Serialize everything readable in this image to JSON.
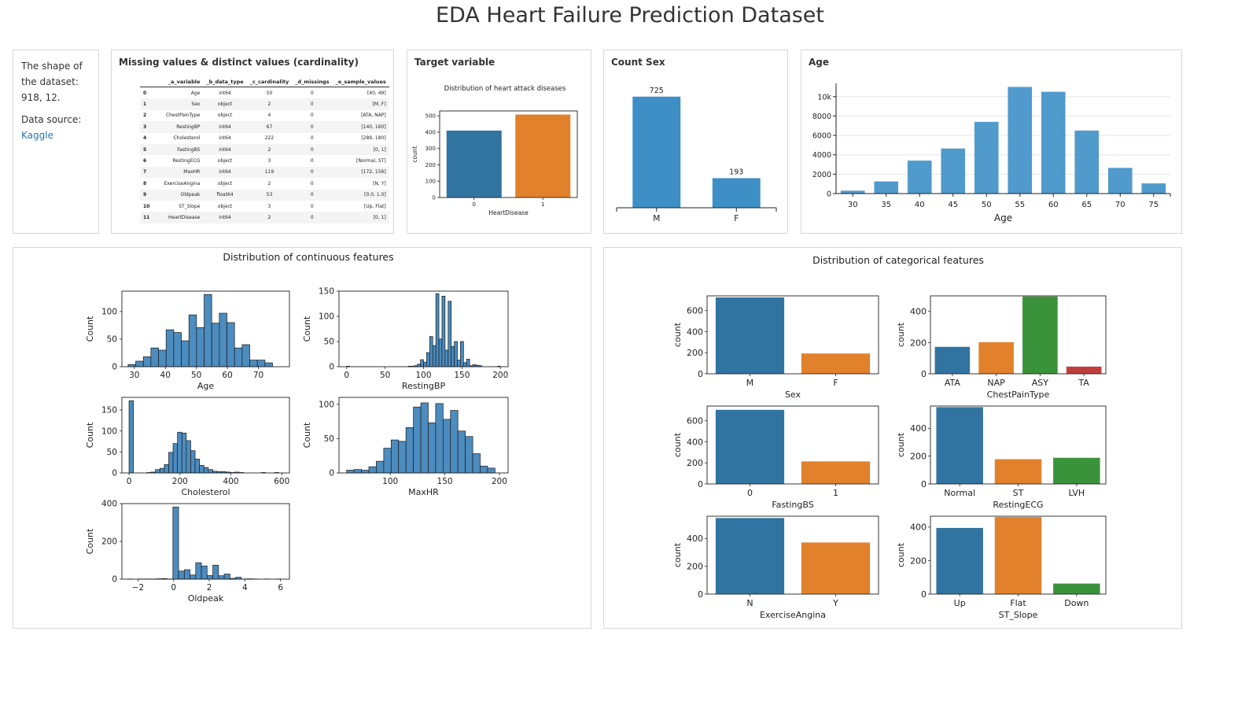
{
  "page": {
    "title": "EDA Heart Failure Prediction Dataset"
  },
  "info": {
    "shape_text": "The shape of the dataset: 918, 12.",
    "source_label": "Data source:",
    "source_link": "Kaggle"
  },
  "missing_card": {
    "title": "Missing values & distinct values (cardinality)",
    "columns": [
      "_a_variable",
      "_b_data_type",
      "_c_cardinality",
      "_d_missings",
      "_e_sample_values"
    ],
    "rows": [
      [
        "0",
        "Age",
        "int64",
        "50",
        "0",
        "[40, 49]"
      ],
      [
        "1",
        "Sex",
        "object",
        "2",
        "0",
        "[M, F]"
      ],
      [
        "2",
        "ChestPainType",
        "object",
        "4",
        "0",
        "[ATA, NAP]"
      ],
      [
        "3",
        "RestingBP",
        "int64",
        "67",
        "0",
        "[140, 160]"
      ],
      [
        "4",
        "Cholesterol",
        "int64",
        "222",
        "0",
        "[289, 180]"
      ],
      [
        "5",
        "FastingBS",
        "int64",
        "2",
        "0",
        "[0, 1]"
      ],
      [
        "6",
        "RestingECG",
        "object",
        "3",
        "0",
        "[Normal, ST]"
      ],
      [
        "7",
        "MaxHR",
        "int64",
        "119",
        "0",
        "[172, 156]"
      ],
      [
        "8",
        "ExerciseAngina",
        "object",
        "2",
        "0",
        "[N, Y]"
      ],
      [
        "9",
        "Oldpeak",
        "float64",
        "53",
        "0",
        "[0.0, 1.0]"
      ],
      [
        "10",
        "ST_Slope",
        "object",
        "3",
        "0",
        "[Up, Flat]"
      ],
      [
        "11",
        "HeartDisease",
        "int64",
        "2",
        "0",
        "[0, 1]"
      ]
    ]
  },
  "target_card": {
    "title": "Target variable"
  },
  "count_sex_card": {
    "title": "Count Sex"
  },
  "age_card": {
    "title": "Age"
  },
  "continuous_card": {
    "title": "Distribution of continuous features"
  },
  "categorical_card": {
    "title": "Distribution of categorical features"
  },
  "colors": {
    "sns_blue": "#3274a1",
    "sns_orange": "#e1812c",
    "sns_green": "#3a923a",
    "sns_red": "#c03d3e",
    "hist_blue": "#4c8cbf",
    "plotly_blue": "#3d8fc6",
    "edge": "#222222"
  },
  "chart_data": [
    {
      "id": "target",
      "type": "bar",
      "title": "Distribution of heart attack diseases",
      "categories": [
        "0",
        "1"
      ],
      "values": [
        410,
        508
      ],
      "xlabel": "HeartDisease",
      "ylabel": "count",
      "ylim": [
        0,
        530
      ],
      "yticks": [
        0,
        100,
        200,
        300,
        400,
        500
      ]
    },
    {
      "id": "count_sex",
      "type": "bar",
      "categories": [
        "M",
        "F"
      ],
      "values": [
        725,
        193
      ],
      "data_labels": [
        "725",
        "193"
      ],
      "ylim": [
        0,
        760
      ]
    },
    {
      "id": "age_plotly",
      "type": "bar",
      "categories": [
        30,
        35,
        40,
        45,
        50,
        55,
        60,
        65,
        70,
        75
      ],
      "values": [
        300,
        1250,
        3400,
        4650,
        7400,
        11000,
        10500,
        6500,
        2650,
        1050
      ],
      "xlabel": "Age",
      "ylim": [
        0,
        11200
      ],
      "yticks": [
        0,
        2000,
        4000,
        6000,
        8000,
        10000
      ],
      "ytick_labels": [
        "0",
        "2000",
        "4000",
        "6000",
        "8000",
        "10k"
      ]
    },
    {
      "id": "hist_age",
      "type": "bar",
      "xlabel": "Age",
      "ylabel": "Count",
      "bin_start": 28,
      "bin_width": 2.45,
      "values": [
        4,
        10,
        18,
        34,
        30,
        67,
        62,
        47,
        94,
        71,
        131,
        79,
        97,
        80,
        34,
        40,
        12,
        12,
        7
      ],
      "xlim": [
        26,
        80
      ],
      "ylim": [
        0,
        137
      ],
      "xticks": [
        30,
        40,
        50,
        60,
        70
      ],
      "yticks": [
        0,
        50,
        100
      ]
    },
    {
      "id": "hist_restingbp",
      "type": "bar",
      "xlabel": "RestingBP",
      "ylabel": "Count",
      "bin_start": 0,
      "bin_width": 4,
      "values": [
        1,
        0,
        0,
        0,
        0,
        0,
        0,
        0,
        0,
        0,
        0,
        0,
        0,
        0,
        0,
        0,
        0,
        0,
        0,
        0,
        1,
        1,
        2,
        5,
        14,
        9,
        28,
        60,
        42,
        145,
        55,
        140,
        33,
        130,
        40,
        50,
        13,
        50,
        8,
        15,
        2,
        4,
        3,
        2,
        0,
        0,
        0,
        0,
        0,
        1
      ],
      "xlim": [
        -10,
        210
      ],
      "ylim": [
        0,
        150
      ],
      "xticks": [
        0,
        50,
        100,
        150,
        200
      ],
      "yticks": [
        0,
        50,
        100,
        150
      ]
    },
    {
      "id": "hist_cholesterol",
      "type": "bar",
      "xlabel": "Cholesterol",
      "ylabel": "Count",
      "bin_start": 0,
      "bin_width": 17.3,
      "values": [
        172,
        0,
        0,
        0,
        1,
        2,
        8,
        11,
        20,
        49,
        70,
        97,
        95,
        77,
        53,
        33,
        18,
        13,
        8,
        4,
        3,
        3,
        2,
        1,
        2,
        1,
        0,
        0,
        0,
        0,
        1,
        0,
        0,
        1
      ],
      "xlim": [
        -28,
        630
      ],
      "ylim": [
        0,
        180
      ],
      "xticks": [
        0,
        200,
        400,
        600
      ],
      "yticks": [
        0,
        50,
        100,
        150
      ]
    },
    {
      "id": "hist_maxhr",
      "type": "bar",
      "xlabel": "MaxHR",
      "ylabel": "Count",
      "bin_start": 60,
      "bin_width": 6.8,
      "values": [
        4,
        5,
        4,
        9,
        17,
        36,
        48,
        46,
        66,
        96,
        102,
        73,
        101,
        78,
        91,
        61,
        53,
        28,
        10,
        7
      ],
      "xlim": [
        53,
        208
      ],
      "ylim": [
        0,
        110
      ],
      "xticks": [
        100,
        150,
        200
      ],
      "yticks": [
        0,
        50,
        100
      ]
    },
    {
      "id": "hist_oldpeak",
      "type": "bar",
      "xlabel": "Oldpeak",
      "ylabel": "Count",
      "bin_start": -2.6,
      "bin_width": 0.32,
      "values": [
        1,
        0,
        1,
        1,
        1,
        2,
        3,
        1,
        382,
        43,
        50,
        22,
        87,
        70,
        19,
        74,
        18,
        27,
        4,
        10,
        1,
        2,
        1,
        0,
        1,
        0,
        1,
        0
      ],
      "xlim": [
        -2.9,
        6.5
      ],
      "ylim": [
        0,
        400
      ],
      "xticks": [
        -2,
        0,
        2,
        4,
        6
      ],
      "yticks": [
        0,
        200,
        400
      ]
    },
    {
      "id": "cat_sex",
      "type": "bar",
      "xlabel": "Sex",
      "ylabel": "count",
      "categories": [
        "M",
        "F"
      ],
      "values": [
        725,
        193
      ],
      "ylim": [
        0,
        740
      ],
      "yticks": [
        0,
        200,
        400,
        600
      ]
    },
    {
      "id": "cat_chestpain",
      "type": "bar",
      "xlabel": "ChestPainType",
      "ylabel": "count",
      "categories": [
        "ATA",
        "NAP",
        "ASY",
        "TA"
      ],
      "values": [
        173,
        203,
        496,
        46
      ],
      "ylim": [
        0,
        500
      ],
      "yticks": [
        0,
        200,
        400
      ]
    },
    {
      "id": "cat_fastingbs",
      "type": "bar",
      "xlabel": "FastingBS",
      "ylabel": "count",
      "categories": [
        "0",
        "1"
      ],
      "values": [
        704,
        214
      ],
      "ylim": [
        0,
        740
      ],
      "yticks": [
        0,
        200,
        400,
        600
      ]
    },
    {
      "id": "cat_restingecg",
      "type": "bar",
      "xlabel": "RestingECG",
      "ylabel": "count",
      "categories": [
        "Normal",
        "ST",
        "LVH"
      ],
      "values": [
        552,
        178,
        188
      ],
      "ylim": [
        0,
        560
      ],
      "yticks": [
        0,
        200,
        400
      ]
    },
    {
      "id": "cat_exerciseangina",
      "type": "bar",
      "xlabel": "ExerciseAngina",
      "ylabel": "count",
      "categories": [
        "N",
        "Y"
      ],
      "values": [
        547,
        371
      ],
      "ylim": [
        0,
        560
      ],
      "yticks": [
        0,
        200,
        400
      ]
    },
    {
      "id": "cat_stslope",
      "type": "bar",
      "xlabel": "ST_Slope",
      "ylabel": "count",
      "categories": [
        "Up",
        "Flat",
        "Down"
      ],
      "values": [
        395,
        460,
        63
      ],
      "ylim": [
        0,
        465
      ],
      "yticks": [
        0,
        200,
        400
      ]
    }
  ]
}
